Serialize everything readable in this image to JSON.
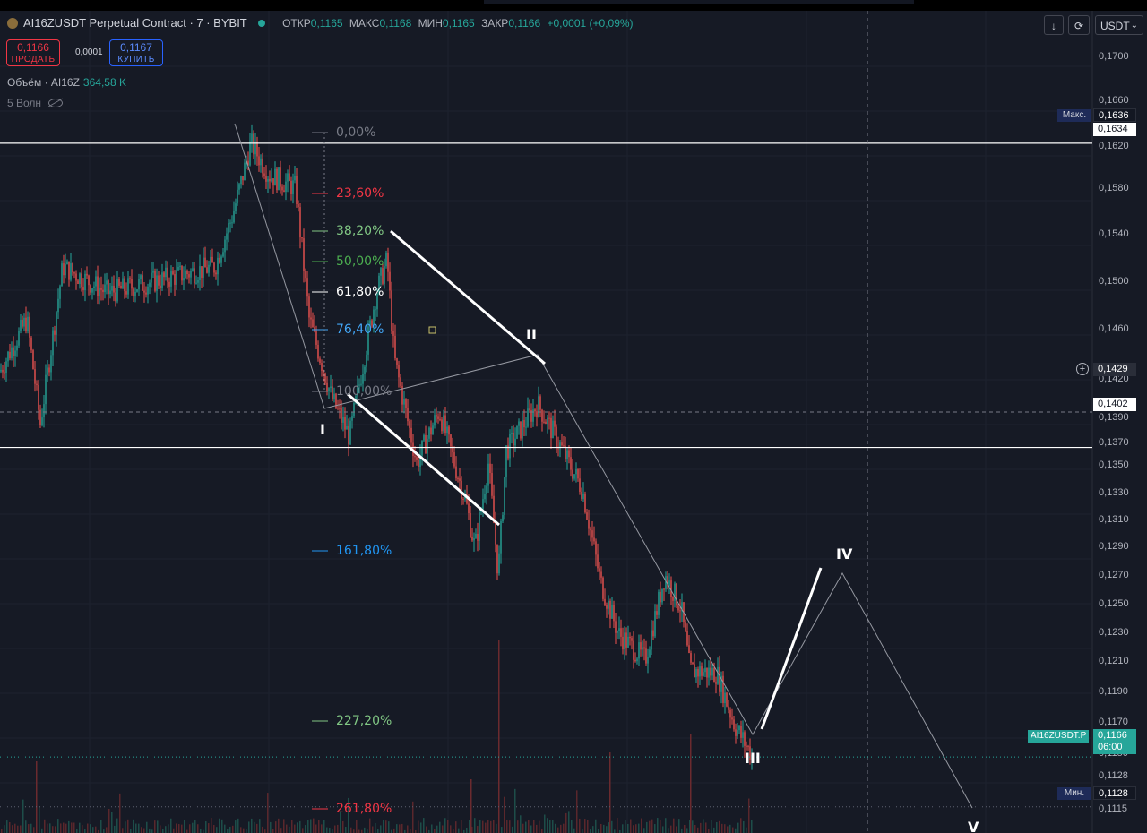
{
  "header": {
    "symbol": "AI16ZUSDT Perpetual Contract · 7 · BYBIT",
    "ohlc": [
      {
        "key": "ОТКР",
        "value": "0,1165"
      },
      {
        "key": "МАКС",
        "value": "0,1168"
      },
      {
        "key": "МИН",
        "value": "0,1165"
      },
      {
        "key": "ЗАКР",
        "value": "0,1166"
      }
    ],
    "change": "+0,0001 (+0,09%)"
  },
  "trade": {
    "sell_price": "0,1166",
    "sell_label": "ПРОДАТЬ",
    "spread": "0,0001",
    "buy_price": "0,1167",
    "buy_label": "КУПИТЬ"
  },
  "volume_legend": {
    "label": "Объём · AI16Z",
    "value": "364,58 K"
  },
  "waves_legend": {
    "label": "5 Волн"
  },
  "controls": {
    "currency": "USDT"
  },
  "colors": {
    "up": "#26a69a",
    "down": "#ef5350",
    "background": "#161a25",
    "grid": "#1f2430"
  },
  "price_axis": {
    "ticks": [
      "0,1700",
      "0,1660",
      "0,1620",
      "0,1580",
      "0,1540",
      "0,1500",
      "0,1460",
      "0,1420",
      "0,1390",
      "0,1370",
      "0,1350",
      "0,1330",
      "0,1310",
      "0,1290",
      "0,1270",
      "0,1250",
      "0,1230",
      "0,1210",
      "0,1190",
      "0,1170",
      "0,1150",
      "0,1128",
      "0,1115"
    ],
    "max_label": "Макс.",
    "max_value": "0,1636",
    "level_upper": "0,1634",
    "crosshair_value": "0,1429",
    "level_lower": "0,1402",
    "symbol_tag": "AI16ZUSDT.P",
    "last_price": "0,1166",
    "countdown": "06:00",
    "min_label": "Мин.",
    "min_value": "0,1128"
  },
  "chart_data": {
    "type": "line",
    "title": "AI16ZUSDT Perpetual Contract · 7 · BYBIT",
    "ylim": [
      0.1108,
      0.1735
    ],
    "candles_approx_path": [
      [
        0,
        0.146
      ],
      [
        30,
        0.15
      ],
      [
        45,
        0.142
      ],
      [
        70,
        0.154
      ],
      [
        120,
        0.152
      ],
      [
        180,
        0.153
      ],
      [
        240,
        0.154
      ],
      [
        260,
        0.158
      ],
      [
        280,
        0.1634
      ],
      [
        300,
        0.161
      ],
      [
        330,
        0.16
      ],
      [
        345,
        0.15
      ],
      [
        370,
        0.144
      ],
      [
        390,
        0.141
      ],
      [
        420,
        0.152
      ],
      [
        432,
        0.1545
      ],
      [
        440,
        0.147
      ],
      [
        465,
        0.139
      ],
      [
        490,
        0.143
      ],
      [
        520,
        0.136
      ],
      [
        530,
        0.1325
      ],
      [
        545,
        0.139
      ],
      [
        556,
        0.1306
      ],
      [
        565,
        0.14
      ],
      [
        600,
        0.1435
      ],
      [
        620,
        0.141
      ],
      [
        650,
        0.137
      ],
      [
        670,
        0.13
      ],
      [
        690,
        0.126
      ],
      [
        720,
        0.124
      ],
      [
        742,
        0.1305
      ],
      [
        760,
        0.128
      ],
      [
        770,
        0.1232
      ],
      [
        800,
        0.123
      ],
      [
        820,
        0.119
      ],
      [
        840,
        0.1166
      ]
    ],
    "fibonacci": [
      {
        "label": "0,00%",
        "color": "#787b86"
      },
      {
        "label": "23,60%",
        "color": "#f23645"
      },
      {
        "label": "38,20%",
        "color": "#81c784"
      },
      {
        "label": "50,00%",
        "color": "#4caf50"
      },
      {
        "label": "61,80%",
        "color": "#ffffff"
      },
      {
        "label": "76,40%",
        "color": "#42a5f5"
      },
      {
        "label": "100,00%",
        "color": "#787b86"
      },
      {
        "label": "161,80%",
        "color": "#2196f3"
      },
      {
        "label": "227,20%",
        "color": "#81c784"
      },
      {
        "label": "261,80%",
        "color": "#f23645"
      }
    ],
    "elliott_waves": [
      "I",
      "II",
      "III",
      "IV",
      "V"
    ],
    "horizontal_levels": [
      0.1634,
      0.1402
    ],
    "crosshair": 0.1429
  }
}
